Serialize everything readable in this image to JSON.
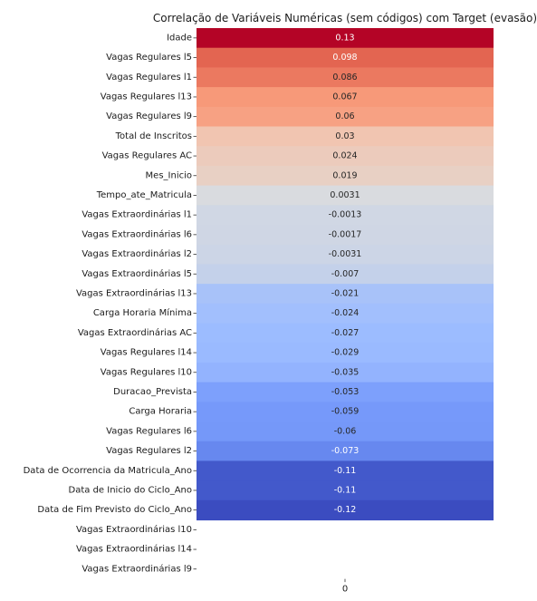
{
  "chart_data": {
    "type": "heatmap",
    "title": "Correlação de Variáveis Numéricas (sem códigos) com Target (evasão)",
    "column_labels": [
      "0"
    ],
    "rows": [
      {
        "label": "Idade",
        "value": 0.13,
        "value_label": "0.13"
      },
      {
        "label": "Vagas Regulares l5",
        "value": 0.098,
        "value_label": "0.098"
      },
      {
        "label": "Vagas Regulares l1",
        "value": 0.086,
        "value_label": "0.086"
      },
      {
        "label": "Vagas Regulares l13",
        "value": 0.067,
        "value_label": "0.067"
      },
      {
        "label": "Vagas Regulares l9",
        "value": 0.06,
        "value_label": "0.06"
      },
      {
        "label": "Total de Inscritos",
        "value": 0.03,
        "value_label": "0.03"
      },
      {
        "label": "Vagas Regulares AC",
        "value": 0.024,
        "value_label": "0.024"
      },
      {
        "label": "Mes_Inicio",
        "value": 0.019,
        "value_label": "0.019"
      },
      {
        "label": "Tempo_ate_Matricula",
        "value": 0.0031,
        "value_label": "0.0031"
      },
      {
        "label": "Vagas Extraordinárias l1",
        "value": -0.0013,
        "value_label": "-0.0013"
      },
      {
        "label": "Vagas Extraordinárias l6",
        "value": -0.0017,
        "value_label": "-0.0017"
      },
      {
        "label": "Vagas Extraordinárias l2",
        "value": -0.0031,
        "value_label": "-0.0031"
      },
      {
        "label": "Vagas Extraordinárias l5",
        "value": -0.007,
        "value_label": "-0.007"
      },
      {
        "label": "Vagas Extraordinárias l13",
        "value": -0.021,
        "value_label": "-0.021"
      },
      {
        "label": "Carga Horaria Mínima",
        "value": -0.024,
        "value_label": "-0.024"
      },
      {
        "label": "Vagas Extraordinárias AC",
        "value": -0.027,
        "value_label": "-0.027"
      },
      {
        "label": "Vagas Regulares l14",
        "value": -0.029,
        "value_label": "-0.029"
      },
      {
        "label": "Vagas Regulares l10",
        "value": -0.035,
        "value_label": "-0.035"
      },
      {
        "label": "Duracao_Prevista",
        "value": -0.053,
        "value_label": "-0.053"
      },
      {
        "label": "Carga Horaria",
        "value": -0.059,
        "value_label": "-0.059"
      },
      {
        "label": "Vagas Regulares l6",
        "value": -0.06,
        "value_label": "-0.06"
      },
      {
        "label": "Vagas Regulares l2",
        "value": -0.073,
        "value_label": "-0.073"
      },
      {
        "label": "Data de Ocorrencia da Matricula_Ano",
        "value": -0.11,
        "value_label": "-0.11"
      },
      {
        "label": "Data de Inicio do Ciclo_Ano",
        "value": -0.11,
        "value_label": "-0.11"
      },
      {
        "label": "Data de Fim Previsto do Ciclo_Ano",
        "value": -0.12,
        "value_label": "-0.12"
      },
      {
        "label": "Vagas Extraordinárias l10",
        "value": null,
        "value_label": ""
      },
      {
        "label": "Vagas Extraordinárias l14",
        "value": null,
        "value_label": ""
      },
      {
        "label": "Vagas Extraordinárias l9",
        "value": null,
        "value_label": ""
      }
    ],
    "colormap": "coolwarm",
    "color_range": [
      -0.12,
      0.13
    ],
    "colorbar": false,
    "grid": false
  }
}
